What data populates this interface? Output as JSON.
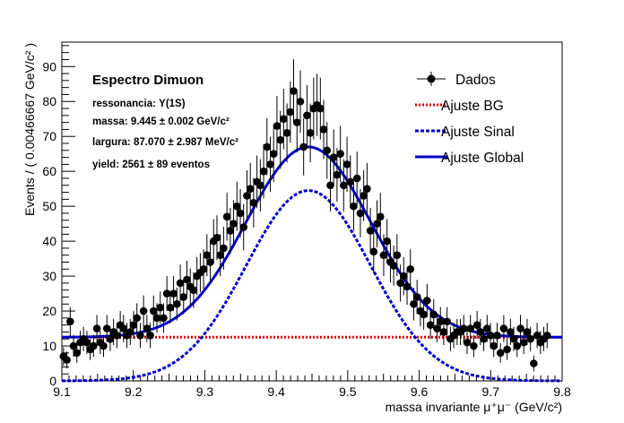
{
  "chart_data": {
    "type": "scatter",
    "title": "",
    "xlabel": "massa invariante μ⁺μ⁻ (GeV/c²)",
    "ylabel": "Events / ( 0.00466667 GeV/c² )",
    "xlim": [
      9.1,
      9.8
    ],
    "ylim": [
      0,
      97
    ],
    "x_ticks": [
      "9.1",
      "9.2",
      "9.3",
      "9.4",
      "9.5",
      "9.6",
      "9.7",
      "9.8"
    ],
    "y_ticks": [
      "0",
      "10",
      "20",
      "30",
      "40",
      "50",
      "60",
      "70",
      "80",
      "90"
    ],
    "grid": false,
    "legend_position": "top-right",
    "info_box": {
      "title": "Espectro Dimuon",
      "lines": [
        "ressonancia: Υ(1S)",
        "massa: 9.445 ± 0.002 GeV/c²",
        "largura: 87.070 ± 2.987 MeV/c²",
        "yield: 2561 ± 89 eventos"
      ]
    },
    "legend": [
      {
        "label": "Dados",
        "style": "marker",
        "color": "#000000"
      },
      {
        "label": "Ajuste BG",
        "style": "dotted",
        "color": "#dd0000"
      },
      {
        "label": "Ajuste Sinal",
        "style": "dashed",
        "color": "#0000cc"
      },
      {
        "label": "Ajuste Global",
        "style": "solid",
        "color": "#0000cc"
      }
    ],
    "fit": {
      "background_level": 12.5,
      "signal_mean": 9.445,
      "signal_sigma": 0.087,
      "signal_amplitude": 54.5
    },
    "series": [
      {
        "name": "Dados",
        "type": "scatter",
        "x": [
          9.1023,
          9.107,
          9.1117,
          9.1163,
          9.121,
          9.1257,
          9.1303,
          9.135,
          9.1397,
          9.1443,
          9.149,
          9.1537,
          9.1583,
          9.163,
          9.1677,
          9.1723,
          9.177,
          9.1817,
          9.1863,
          9.191,
          9.1957,
          9.2003,
          9.205,
          9.2097,
          9.2143,
          9.219,
          9.2237,
          9.2283,
          9.233,
          9.2377,
          9.2423,
          9.247,
          9.2517,
          9.2563,
          9.261,
          9.2657,
          9.2703,
          9.275,
          9.2797,
          9.2843,
          9.289,
          9.2937,
          9.2983,
          9.303,
          9.3077,
          9.3123,
          9.317,
          9.3217,
          9.3263,
          9.331,
          9.3357,
          9.3403,
          9.345,
          9.3497,
          9.3543,
          9.359,
          9.3637,
          9.3683,
          9.373,
          9.3777,
          9.3823,
          9.387,
          9.3917,
          9.3963,
          9.401,
          9.4057,
          9.4103,
          9.415,
          9.4197,
          9.4243,
          9.429,
          9.4337,
          9.4383,
          9.443,
          9.4477,
          9.4523,
          9.457,
          9.4617,
          9.4663,
          9.471,
          9.4757,
          9.4803,
          9.485,
          9.4897,
          9.4943,
          9.499,
          9.5037,
          9.5083,
          9.513,
          9.5177,
          9.5223,
          9.527,
          9.5317,
          9.5363,
          9.541,
          9.5457,
          9.5503,
          9.555,
          9.5597,
          9.5643,
          9.569,
          9.5737,
          9.5783,
          9.583,
          9.5877,
          9.5923,
          9.597,
          9.6017,
          9.6063,
          9.611,
          9.6157,
          9.6203,
          9.625,
          9.6297,
          9.6343,
          9.639,
          9.6437,
          9.6483,
          9.653,
          9.6577,
          9.6623,
          9.667,
          9.6717,
          9.6763,
          9.681,
          9.6857,
          9.6903,
          9.695,
          9.6997,
          9.7043,
          9.709,
          9.7137,
          9.7183,
          9.723,
          9.7277,
          9.7323,
          9.737,
          9.7417,
          9.7463,
          9.751,
          9.7557,
          9.7603,
          9.765,
          9.7697,
          9.7743,
          9.779
        ],
        "y": [
          7,
          6,
          17,
          10,
          8,
          11,
          12,
          11,
          9,
          10,
          15,
          11,
          10,
          15,
          12,
          14,
          13,
          16,
          15,
          13,
          14,
          16,
          18,
          13,
          20,
          15,
          13,
          20,
          18,
          21,
          18,
          25,
          21,
          25,
          22,
          28,
          24,
          29,
          27,
          26,
          30,
          31,
          32,
          36,
          34,
          40,
          41,
          36,
          38,
          47,
          43,
          45,
          50,
          48,
          44,
          53,
          55,
          51,
          57,
          56,
          60,
          67,
          62,
          65,
          73,
          69,
          75,
          71,
          77,
          83,
          74,
          80,
          67,
          76,
          71,
          78,
          79,
          78,
          72,
          66,
          56,
          64,
          59,
          65,
          56,
          62,
          57,
          50,
          58,
          48,
          53,
          55,
          43,
          37,
          45,
          47,
          36,
          40,
          34,
          33,
          36,
          28,
          30,
          27,
          32,
          22,
          24,
          20,
          19,
          23,
          16,
          19,
          15,
          17,
          14,
          17,
          12,
          13,
          14,
          14,
          15,
          11,
          15,
          10,
          16,
          14,
          12,
          15,
          13,
          10,
          13,
          8,
          15,
          9,
          14,
          12,
          10,
          15,
          11,
          14,
          12,
          5,
          13,
          11,
          12,
          13
        ]
      }
    ]
  }
}
